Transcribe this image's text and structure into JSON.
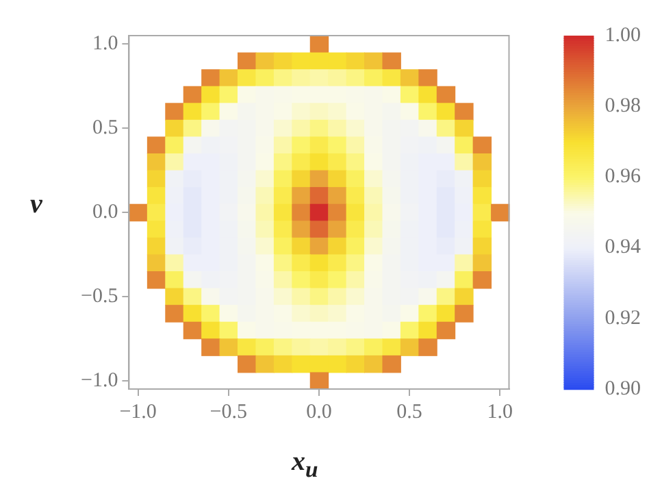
{
  "chart_data": {
    "type": "heatmap",
    "xlabel": "x$_{u}$",
    "ylabel": "v",
    "xlim": [
      -1.05,
      1.05
    ],
    "ylim": [
      -1.05,
      1.05
    ],
    "xticks": [
      {
        "value": -1,
        "label": "−1.0"
      },
      {
        "value": -0.5,
        "label": "−0.5"
      },
      {
        "value": 0,
        "label": "0.0"
      },
      {
        "value": 0.5,
        "label": "0.5"
      },
      {
        "value": 1,
        "label": "1.0"
      }
    ],
    "yticks": [
      {
        "value": -1,
        "label": "−1.0"
      },
      {
        "value": -0.5,
        "label": "−0.5"
      },
      {
        "value": 0,
        "label": "0.0"
      },
      {
        "value": 0.5,
        "label": "0.5"
      },
      {
        "value": 1,
        "label": "1.0"
      }
    ],
    "clim": [
      0.9,
      1
    ],
    "cticks": [
      {
        "value": 0.9,
        "label": "0.90"
      },
      {
        "value": 0.92,
        "label": "0.92"
      },
      {
        "value": 0.94,
        "label": "0.94"
      },
      {
        "value": 0.96,
        "label": "0.96"
      },
      {
        "value": 0.98,
        "label": "0.98"
      },
      {
        "value": 1,
        "label": "1.00"
      }
    ],
    "cells": [
      [
        null,
        null,
        null,
        null,
        null,
        null,
        null,
        null,
        null,
        null,
        0.985,
        null,
        null,
        null,
        null,
        null,
        null,
        null,
        null,
        null,
        null
      ],
      [
        null,
        null,
        null,
        null,
        null,
        null,
        0.985,
        0.975,
        0.972,
        0.97,
        0.97,
        0.97,
        0.972,
        0.975,
        0.985,
        null,
        null,
        null,
        null,
        null,
        null
      ],
      [
        null,
        null,
        null,
        null,
        0.985,
        0.975,
        0.967,
        0.962,
        0.958,
        0.956,
        0.955,
        0.956,
        0.958,
        0.962,
        0.967,
        0.975,
        0.985,
        null,
        null,
        null,
        null
      ],
      [
        null,
        null,
        null,
        0.985,
        0.97,
        0.96,
        0.95,
        0.948,
        0.949,
        0.95,
        0.95,
        0.95,
        0.949,
        0.948,
        0.95,
        0.96,
        0.97,
        0.985,
        null,
        null,
        null
      ],
      [
        null,
        null,
        0.985,
        0.97,
        0.96,
        0.95,
        0.946,
        0.948,
        0.95,
        0.952,
        0.953,
        0.952,
        0.95,
        0.948,
        0.946,
        0.95,
        0.96,
        0.97,
        0.985,
        null,
        null
      ],
      [
        null,
        null,
        0.972,
        0.958,
        0.948,
        0.944,
        0.945,
        0.948,
        0.952,
        0.955,
        0.958,
        0.955,
        0.952,
        0.948,
        0.945,
        0.944,
        0.948,
        0.958,
        0.972,
        null,
        null
      ],
      [
        null,
        0.985,
        0.962,
        0.945,
        0.942,
        0.943,
        0.945,
        0.949,
        0.955,
        0.96,
        0.965,
        0.96,
        0.955,
        0.949,
        0.945,
        0.943,
        0.942,
        0.945,
        0.962,
        0.985,
        null
      ],
      [
        null,
        0.975,
        0.955,
        0.94,
        0.94,
        0.942,
        0.945,
        0.95,
        0.958,
        0.965,
        0.97,
        0.965,
        0.958,
        0.95,
        0.945,
        0.942,
        0.94,
        0.94,
        0.955,
        0.975,
        null
      ],
      [
        null,
        0.972,
        0.942,
        0.939,
        0.94,
        0.942,
        0.946,
        0.952,
        0.962,
        0.972,
        0.98,
        0.972,
        0.962,
        0.952,
        0.946,
        0.942,
        0.94,
        0.939,
        0.942,
        0.972,
        null
      ],
      [
        null,
        0.968,
        0.941,
        0.938,
        0.94,
        0.942,
        0.947,
        0.954,
        0.965,
        0.98,
        0.99,
        0.98,
        0.965,
        0.954,
        0.947,
        0.942,
        0.94,
        0.938,
        0.941,
        0.968,
        null
      ],
      [
        0.985,
        0.965,
        0.94,
        0.938,
        0.94,
        0.943,
        0.948,
        0.955,
        0.968,
        0.985,
        1,
        0.985,
        0.968,
        0.955,
        0.948,
        0.943,
        0.94,
        0.938,
        0.94,
        0.965,
        0.985
      ],
      [
        null,
        0.968,
        0.941,
        0.938,
        0.94,
        0.942,
        0.947,
        0.954,
        0.965,
        0.98,
        0.99,
        0.98,
        0.965,
        0.954,
        0.947,
        0.942,
        0.94,
        0.938,
        0.941,
        0.968,
        null
      ],
      [
        null,
        0.972,
        0.942,
        0.939,
        0.94,
        0.942,
        0.946,
        0.952,
        0.962,
        0.972,
        0.98,
        0.972,
        0.962,
        0.952,
        0.946,
        0.942,
        0.94,
        0.939,
        0.942,
        0.972,
        null
      ],
      [
        null,
        0.975,
        0.955,
        0.94,
        0.94,
        0.942,
        0.945,
        0.95,
        0.958,
        0.965,
        0.97,
        0.965,
        0.958,
        0.95,
        0.945,
        0.942,
        0.94,
        0.94,
        0.955,
        0.975,
        null
      ],
      [
        null,
        0.985,
        0.962,
        0.945,
        0.942,
        0.943,
        0.945,
        0.949,
        0.955,
        0.96,
        0.965,
        0.96,
        0.955,
        0.949,
        0.945,
        0.943,
        0.942,
        0.945,
        0.962,
        0.985,
        null
      ],
      [
        null,
        null,
        0.972,
        0.958,
        0.948,
        0.944,
        0.945,
        0.948,
        0.952,
        0.955,
        0.958,
        0.955,
        0.952,
        0.948,
        0.945,
        0.944,
        0.948,
        0.958,
        0.972,
        null,
        null
      ],
      [
        null,
        null,
        0.985,
        0.97,
        0.96,
        0.95,
        0.946,
        0.948,
        0.95,
        0.952,
        0.953,
        0.952,
        0.95,
        0.948,
        0.946,
        0.95,
        0.96,
        0.97,
        0.985,
        null,
        null
      ],
      [
        null,
        null,
        null,
        0.985,
        0.97,
        0.96,
        0.95,
        0.948,
        0.949,
        0.95,
        0.95,
        0.95,
        0.949,
        0.948,
        0.95,
        0.96,
        0.97,
        0.985,
        null,
        null,
        null
      ],
      [
        null,
        null,
        null,
        null,
        0.985,
        0.975,
        0.967,
        0.962,
        0.958,
        0.956,
        0.955,
        0.956,
        0.958,
        0.962,
        0.967,
        0.975,
        0.985,
        null,
        null,
        null,
        null
      ],
      [
        null,
        null,
        null,
        null,
        null,
        null,
        0.985,
        0.975,
        0.972,
        0.97,
        0.97,
        0.97,
        0.972,
        0.975,
        0.985,
        null,
        null,
        null,
        null,
        null,
        null
      ],
      [
        null,
        null,
        null,
        null,
        null,
        null,
        null,
        null,
        null,
        null,
        0.985,
        null,
        null,
        null,
        null,
        null,
        null,
        null,
        null,
        null,
        null
      ]
    ]
  }
}
